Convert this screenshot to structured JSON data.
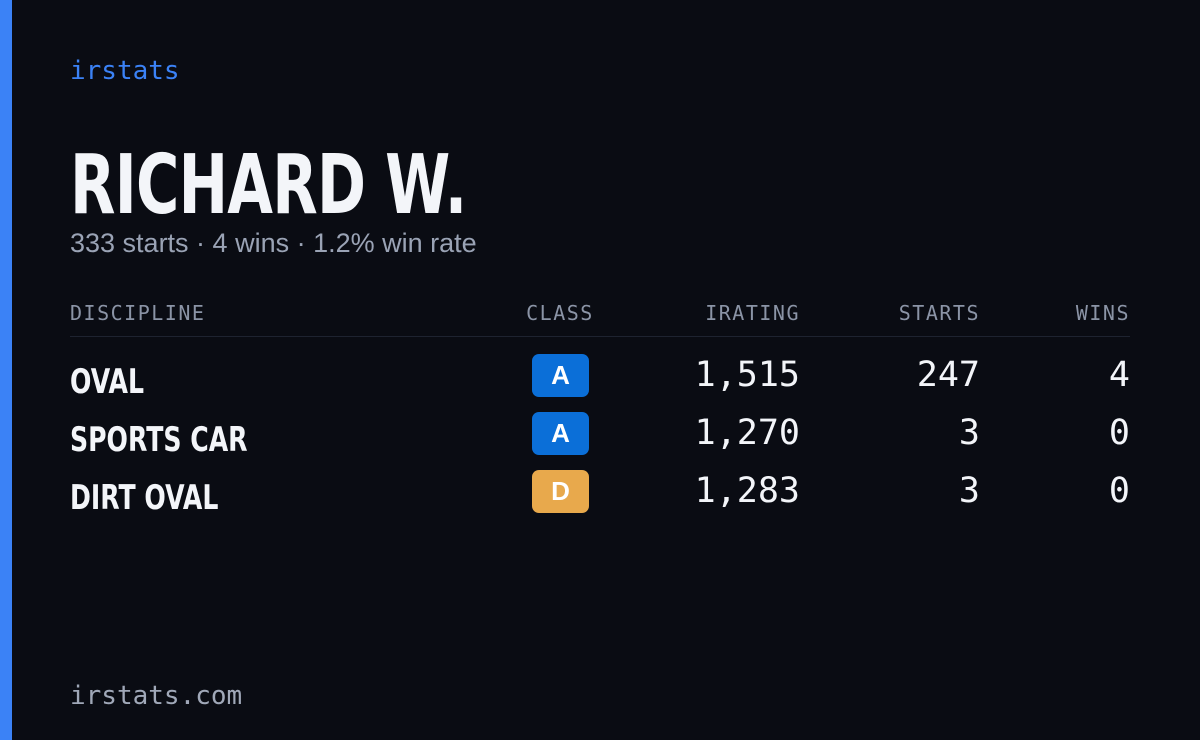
{
  "brand": "irstats",
  "header": {
    "name": "RICHARD W.",
    "subtitle": "333 starts · 4 wins · 1.2% win rate"
  },
  "table": {
    "columns": [
      "DISCIPLINE",
      "CLASS",
      "IRATING",
      "STARTS",
      "WINS"
    ],
    "rows": [
      {
        "discipline": "OVAL",
        "class": "A",
        "class_color": "#0b6fd8",
        "irating": "1,515",
        "starts": "247",
        "wins": "4"
      },
      {
        "discipline": "SPORTS CAR",
        "class": "A",
        "class_color": "#0b6fd8",
        "irating": "1,270",
        "starts": "3",
        "wins": "0"
      },
      {
        "discipline": "DIRT OVAL",
        "class": "D",
        "class_color": "#e8a94c",
        "irating": "1,283",
        "starts": "3",
        "wins": "0"
      }
    ]
  },
  "footer": "irstats.com"
}
